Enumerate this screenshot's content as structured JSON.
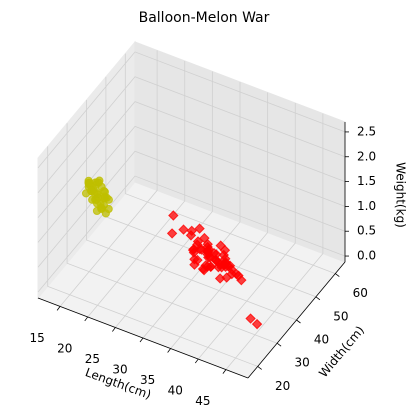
{
  "chart_data": {
    "type": "scatter3d",
    "title": "Balloon-Melon War",
    "xlabel": "Length(cm)",
    "ylabel": "Width(cm)",
    "zlabel": "Weight(kg)",
    "xlim": [
      11,
      49
    ],
    "ylim": [
      15,
      65
    ],
    "zlim": [
      -0.12,
      2.7
    ],
    "xticks": [
      15,
      20,
      25,
      30,
      35,
      40,
      45
    ],
    "yticks": [
      20,
      30,
      40,
      50,
      60
    ],
    "zticks": [
      {
        "value": 0,
        "label": "0.0"
      },
      0.5,
      {
        "value": 1,
        "label": "1.0"
      },
      1.5,
      {
        "value": 2,
        "label": "2.0"
      },
      2.5
    ],
    "grid": true,
    "series": [
      {
        "color": "#bfbf00",
        "marker": "circle",
        "x": [
          18.2,
          17.5,
          19.1,
          16.8,
          18.9,
          17.2,
          20.1,
          18.5,
          16.3,
          19.6,
          17.9,
          18.8,
          17.1,
          19.3,
          18.0,
          16.9,
          20.4,
          17.6,
          18.4,
          19.0,
          17.3,
          18.7,
          16.5,
          19.8,
          18.1,
          17.8,
          18.6,
          19.4,
          16.7,
          18.3,
          17.4,
          19.2,
          18.9,
          17.0,
          20.0,
          18.2,
          17.7,
          19.5,
          16.6,
          18.5
        ],
        "y": [
          25.1,
          23.8,
          26.4,
          24.5,
          22.9,
          27.2,
          25.6,
          24.1,
          26.0,
          23.5,
          28.1,
          25.3,
          22.4,
          26.8,
          24.7,
          25.9,
          23.2,
          27.5,
          24.0,
          26.2,
          23.9,
          25.7,
          27.0,
          24.4,
          22.7,
          26.6,
          25.0,
          23.3,
          24.9,
          27.8,
          25.4,
          22.1,
          26.9,
          24.2,
          25.8,
          23.6,
          26.3,
          24.8,
          25.5,
          23.1
        ],
        "z": [
          1.8,
          1.9,
          1.7,
          2.0,
          1.6,
          1.85,
          1.75,
          2.1,
          1.95,
          1.65,
          1.8,
          1.55,
          1.9,
          1.7,
          2.05,
          1.8,
          1.6,
          1.9,
          1.75,
          1.85,
          2.0,
          1.5,
          1.7,
          1.95,
          1.8,
          1.65,
          2.1,
          1.75,
          1.9,
          1.6,
          1.85,
          1.8,
          1.7,
          2.0,
          1.55,
          1.9,
          1.75,
          1.65,
          1.95,
          1.8
        ]
      },
      {
        "color": "#ff0000",
        "marker": "diamond",
        "x": [
          31.2,
          29.5,
          33.1,
          28.7,
          34.6,
          30.1,
          32.4,
          27.9,
          35.2,
          30.8,
          31.9,
          29.1,
          33.7,
          28.3,
          36.1,
          30.4,
          32.8,
          26.5,
          34.0,
          31.5,
          29.8,
          33.3,
          27.2,
          35.8,
          30.6,
          32.1,
          28.9,
          34.9,
          31.0,
          29.3,
          33.9,
          27.6,
          36.5,
          30.2,
          32.6,
          25.4,
          34.3,
          31.7,
          29.0,
          33.5,
          28.1,
          37.2,
          30.9,
          32.3,
          22.5,
          35.5,
          31.3,
          29.6,
          34.1,
          28.5,
          38.0,
          30.3,
          32.9,
          24.1,
          35.0,
          43.5,
          45.2,
          31.6,
          29.9,
          33.0
        ],
        "y": [
          46.1,
          44.5,
          47.8,
          45.2,
          43.9,
          48.6,
          45.7,
          47.1,
          44.2,
          49.3,
          42.8,
          46.9,
          45.0,
          48.2,
          43.4,
          47.5,
          44.8,
          50.1,
          46.4,
          42.2,
          48.9,
          45.5,
          47.7,
          41.6,
          46.7,
          44.0,
          49.8,
          45.9,
          43.1,
          47.3,
          46.3,
          51.0,
          44.6,
          48.0,
          42.5,
          49.0,
          45.3,
          47.9,
          44.1,
          46.5,
          48.4,
          43.7,
          45.8,
          47.0,
          52.0,
          44.9,
          43.6,
          49.5,
          46.0,
          45.1,
          42.9,
          47.4,
          45.6,
          46.8,
          40.5,
          32.0,
          30.5,
          50.5,
          41.8,
          48.7
        ],
        "z": [
          0.1,
          0.05,
          0.15,
          0.0,
          0.2,
          0.1,
          0.12,
          0.08,
          0.18,
          0.02,
          0.1,
          0.14,
          0.06,
          0.2,
          0.1,
          0.0,
          0.16,
          0.25,
          0.1,
          0.04,
          0.12,
          0.08,
          0.3,
          0.1,
          0.15,
          0.05,
          0.22,
          0.1,
          0.0,
          0.12,
          0.18,
          0.3,
          0.06,
          0.1,
          0.14,
          0.28,
          0.08,
          0.1,
          0.2,
          0.04,
          0.12,
          0.1,
          0.16,
          0.02,
          0.3,
          0.1,
          0.06,
          0.14,
          0.1,
          0.18,
          0.08,
          0.12,
          0.0,
          0.25,
          0.1,
          0.05,
          0.08,
          0.15,
          0.1,
          0.2
        ]
      }
    ]
  }
}
